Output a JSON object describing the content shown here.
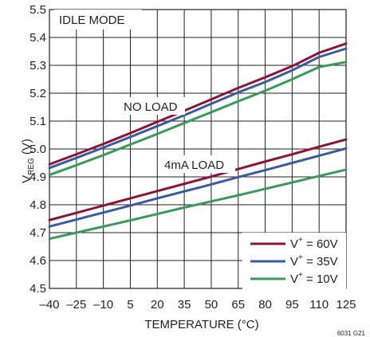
{
  "chart_data": {
    "type": "line",
    "title": "",
    "xlabel": "TEMPERATURE (°C)",
    "ylabel": {
      "main": "V",
      "sub": "REG",
      "unit": " (V)"
    },
    "x_ticks": [
      -40,
      -25,
      -10,
      5,
      20,
      35,
      50,
      65,
      80,
      95,
      110,
      125
    ],
    "x_tick_labels": [
      "–40",
      "–25",
      "–10",
      "5",
      "20",
      "35",
      "50",
      "65",
      "80",
      "95",
      "110",
      "125"
    ],
    "y_ticks": [
      4.5,
      4.6,
      4.7,
      4.8,
      4.9,
      5.0,
      5.1,
      5.2,
      5.3,
      5.4,
      5.5
    ],
    "y_tick_labels": [
      "4.5",
      "4.6",
      "4.7",
      "4.8",
      "4.9",
      "5.0",
      "5.1",
      "5.2",
      "5.3",
      "5.4",
      "5.5"
    ],
    "xlim": [
      -40,
      125
    ],
    "ylim": [
      4.5,
      5.5
    ],
    "grid": true,
    "legend_position": "bottom-right",
    "annotations": {
      "mode": "IDLE MODE",
      "no_load": "NO LOAD",
      "load": "4mA LOAD"
    },
    "figure_id": "6031 G21",
    "legend": [
      {
        "base": "V",
        "sup": "+",
        "text": " = 60V",
        "color": "#8b1538"
      },
      {
        "base": "V",
        "sup": "+",
        "text": " = 35V",
        "color": "#3a5ba0"
      },
      {
        "base": "V",
        "sup": "+",
        "text": " = 10V",
        "color": "#3a9a5a"
      }
    ],
    "x": [
      -40,
      -25,
      -10,
      5,
      20,
      35,
      50,
      65,
      80,
      95,
      110,
      125
    ],
    "series": [
      {
        "group": "no_load",
        "legend_index": 0,
        "color": "#8b1538",
        "values": [
          4.945,
          4.981,
          5.018,
          5.057,
          5.097,
          5.137,
          5.178,
          5.219,
          5.257,
          5.297,
          5.345,
          5.378
        ]
      },
      {
        "group": "no_load",
        "legend_index": 1,
        "color": "#3a5ba0",
        "values": [
          4.932,
          4.968,
          5.005,
          5.043,
          5.082,
          5.121,
          5.162,
          5.203,
          5.24,
          5.282,
          5.33,
          5.36
        ]
      },
      {
        "group": "no_load",
        "legend_index": 2,
        "color": "#3a9a5a",
        "values": [
          4.907,
          4.942,
          4.978,
          5.016,
          5.054,
          5.093,
          5.132,
          5.171,
          5.209,
          5.25,
          5.294,
          5.312
        ]
      },
      {
        "group": "4mA_load",
        "legend_index": 0,
        "color": "#8b1538",
        "values": [
          4.745,
          4.771,
          4.797,
          4.823,
          4.849,
          4.875,
          4.901,
          4.928,
          4.955,
          4.981,
          5.008,
          5.034
        ]
      },
      {
        "group": "4mA_load",
        "legend_index": 1,
        "color": "#3a5ba0",
        "values": [
          4.722,
          4.747,
          4.772,
          4.797,
          4.823,
          4.848,
          4.873,
          4.899,
          4.924,
          4.95,
          4.976,
          5.002
        ]
      },
      {
        "group": "4mA_load",
        "legend_index": 2,
        "color": "#3a9a5a",
        "values": [
          4.678,
          4.7,
          4.722,
          4.744,
          4.767,
          4.79,
          4.812,
          4.834,
          4.857,
          4.88,
          4.903,
          4.926
        ]
      }
    ]
  }
}
